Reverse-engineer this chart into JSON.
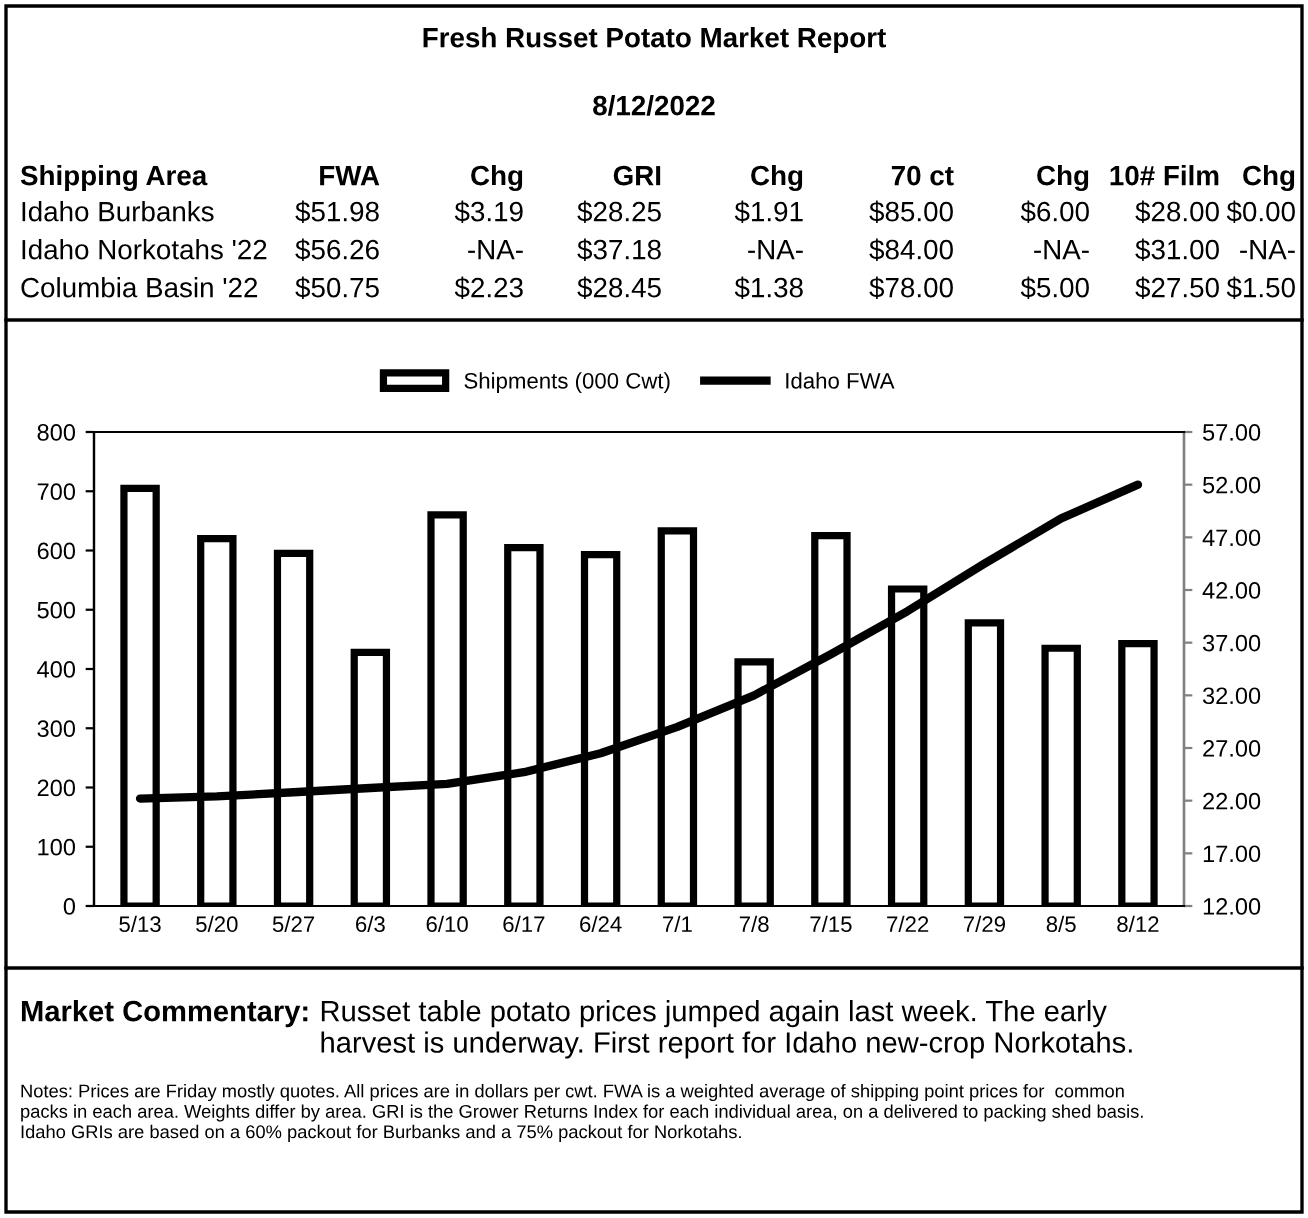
{
  "chart_data": {
    "type": "bar",
    "title": "Fresh Russet Potato Market Report",
    "subtitle": "8/12/2022",
    "categories": [
      "5/13",
      "5/20",
      "5/27",
      "6/3",
      "6/10",
      "6/17",
      "6/24",
      "7/1",
      "7/8",
      "7/15",
      "7/22",
      "7/29",
      "8/5",
      "8/12"
    ],
    "series": [
      {
        "name": "Shipments (000 Cwt)",
        "color": "#ffffff",
        "values": [
          705,
          620,
          595,
          428,
          660,
          605,
          593,
          633,
          412,
          625,
          535,
          478,
          435,
          443
        ]
      },
      {
        "name": "Idaho FWA",
        "type": "line",
        "axis": "y2",
        "color": "#000000",
        "values": [
          22.2,
          22.4,
          22.8,
          23.2,
          23.6,
          24.7,
          26.5,
          29.0,
          32.0,
          35.9,
          40.0,
          44.5,
          48.8,
          52.0
        ]
      }
    ],
    "ylim": [
      0,
      800
    ],
    "yticks": [
      0,
      100,
      200,
      300,
      400,
      500,
      600,
      700,
      800
    ],
    "y2lim": [
      12,
      57
    ],
    "y2ticks": [
      {
        "value": 12,
        "label": "12.00"
      },
      {
        "value": 17,
        "label": "17.00"
      },
      {
        "value": 22,
        "label": "22.00"
      },
      {
        "value": 27,
        "label": "27.00"
      },
      {
        "value": 32,
        "label": "32.00"
      },
      {
        "value": 37,
        "label": "37.00"
      },
      {
        "value": 42,
        "label": "42.00"
      },
      {
        "value": 47,
        "label": "47.00"
      },
      {
        "value": 52,
        "label": "52.00"
      },
      {
        "value": 57,
        "label": "57.00"
      }
    ],
    "grid": false,
    "legend": "top",
    "marker": "none",
    "line_style": "solid",
    "annotations": [
      "Shipping Area",
      "FWA",
      "Chg",
      "GRI",
      "Chg",
      "70 ct",
      "Chg",
      "10# Film",
      "Chg",
      "Idaho Burbanks",
      "$51.98",
      "$3.19",
      "$28.25",
      "$1.91",
      "$85.00",
      "$6.00",
      "$28.00",
      "$0.00",
      "Idaho Norkotahs '22",
      "$56.26",
      "-NA-",
      "$37.18",
      "-NA-",
      "$84.00",
      "-NA-",
      "$31.00",
      "-NA-",
      "Columbia Basin '22",
      "$50.75",
      "$2.23",
      "$28.45",
      "$1.38",
      "$78.00",
      "$5.00",
      "$27.50",
      "$1.50",
      "Market Commentary:",
      "Russet table potato prices jumped again last week. The early\nharvest is underway. First report for Idaho new-crop Norkotahs.",
      "Notes: Prices are Friday mostly quotes. All prices are in dollars per cwt. FWA is a weighted average of shipping point prices for  common\npacks in each area. Weights differ by area. GRI is the Grower Returns Index for each individual area, on a delivered to packing shed basis.\nIdaho GRIs are based on a 60% packout for Burbanks and a 75% packout for Norkotahs."
    ]
  }
}
